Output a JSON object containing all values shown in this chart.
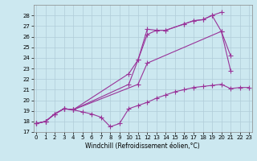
{
  "xlabel": "Windchill (Refroidissement éolien,°C)",
  "bg_color": "#cce8f0",
  "line_color": "#993399",
  "marker": "+",
  "markersize": 4,
  "linewidth": 0.8,
  "ylim": [
    17,
    29
  ],
  "xlim": [
    -0.3,
    23.3
  ],
  "yticks": [
    17,
    18,
    19,
    20,
    21,
    22,
    23,
    24,
    25,
    26,
    27,
    28
  ],
  "xticks": [
    0,
    1,
    2,
    3,
    4,
    5,
    6,
    7,
    8,
    9,
    10,
    11,
    12,
    13,
    14,
    15,
    16,
    17,
    18,
    19,
    20,
    21,
    22,
    23
  ],
  "series": [
    [
      17.8,
      18.0,
      18.7,
      19.2,
      19.1,
      18.9,
      18.7,
      18.4,
      17.5,
      17.8,
      19.2,
      19.5,
      19.8,
      20.2,
      20.5,
      20.8,
      21.0,
      21.2,
      21.3,
      21.4,
      21.5,
      21.1,
      21.2,
      21.2
    ],
    [
      17.8,
      18.0,
      18.7,
      19.2,
      19.1,
      null,
      null,
      null,
      null,
      null,
      22.5,
      23.8,
      26.7,
      26.6,
      26.6,
      null,
      27.2,
      27.5,
      27.6,
      28.0,
      28.3,
      null,
      null,
      null
    ],
    [
      17.8,
      18.0,
      18.7,
      19.2,
      19.1,
      null,
      null,
      null,
      null,
      null,
      null,
      21.5,
      23.5,
      null,
      null,
      null,
      null,
      null,
      null,
      null,
      26.5,
      24.2,
      null,
      null
    ],
    [
      17.8,
      18.0,
      18.7,
      19.2,
      19.1,
      null,
      null,
      null,
      null,
      null,
      21.5,
      23.8,
      26.2,
      26.6,
      26.6,
      null,
      27.2,
      27.5,
      27.6,
      28.0,
      26.5,
      22.8,
      null,
      null
    ]
  ]
}
